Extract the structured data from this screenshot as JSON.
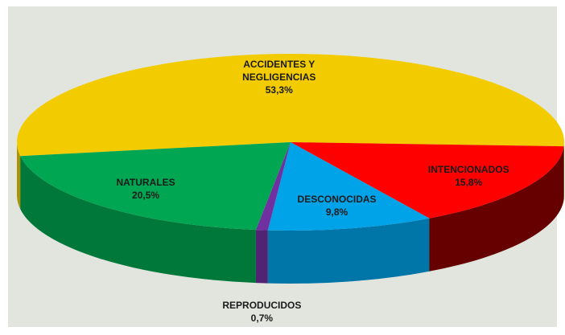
{
  "chart_data": {
    "type": "pie3d",
    "categories": [
      "ACCIDENTES Y NEGLIGENCIAS",
      "INTENCIONADOS",
      "DESCONOCIDAS",
      "REPRODUCIDOS",
      "NATURALES"
    ],
    "values": [
      53.3,
      15.8,
      9.8,
      0.7,
      20.5
    ],
    "value_labels": [
      "53,3%",
      "15,8%",
      "9,8%",
      "0,7%",
      "20,5%"
    ],
    "colors": [
      "#f2cc00",
      "#ff0000",
      "#00a3e8",
      "#7030a0",
      "#00a651"
    ]
  }
}
